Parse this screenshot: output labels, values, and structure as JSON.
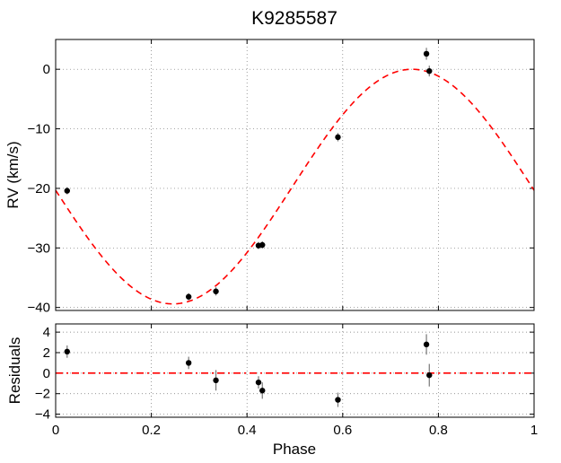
{
  "chart_data": {
    "title": "K9285587",
    "xlabel": "Phase",
    "xlim": [
      0,
      1
    ],
    "xticks": [
      "0",
      "0.2",
      "0.4",
      "0.6",
      "0.8",
      "1"
    ],
    "grid": true,
    "panels": [
      {
        "type": "scatter",
        "ylabel": "RV (km/s)",
        "ylim": [
          -40.5,
          5
        ],
        "yticks": [
          0,
          -10,
          -20,
          -30,
          -40
        ],
        "yticklabels": [
          "0",
          "−10",
          "−20",
          "−30",
          "−40"
        ],
        "series": [
          {
            "kind": "points",
            "color": "#000000",
            "x": [
              0.024,
              0.278,
              0.335,
              0.424,
              0.432,
              0.59,
              0.775,
              0.781
            ],
            "y": [
              -20.4,
              -38.2,
              -37.3,
              -29.6,
              -29.5,
              -11.4,
              2.6,
              -0.3
            ],
            "yerr": [
              0.6,
              0.6,
              0.7,
              0.6,
              0.6,
              0.7,
              1.0,
              0.9
            ]
          },
          {
            "kind": "model",
            "color": "#ff0000",
            "style": "dashed",
            "curve": "sinusoid",
            "offset": -19.7,
            "amplitude": 19.7,
            "phase_of_maximum": 0.745
          }
        ]
      },
      {
        "type": "scatter",
        "ylabel": "Residuals",
        "ylim": [
          -4.3,
          4.8
        ],
        "yticks": [
          4,
          2,
          0,
          -2,
          -4
        ],
        "yticklabels": [
          "4",
          "2",
          "0",
          "−2",
          "−4"
        ],
        "series": [
          {
            "kind": "points",
            "color": "#000000",
            "x": [
              0.024,
              0.278,
              0.335,
              0.424,
              0.432,
              0.59,
              0.775,
              0.781
            ],
            "y": [
              2.1,
              1.0,
              -0.7,
              -0.9,
              -1.7,
              -2.6,
              2.8,
              -0.2
            ],
            "yerr": [
              0.6,
              0.6,
              1.0,
              0.6,
              0.8,
              0.7,
              1.0,
              1.1
            ]
          },
          {
            "kind": "zero-line",
            "color": "#ff0000",
            "style": "dash-dot",
            "y": 0
          }
        ]
      }
    ]
  }
}
